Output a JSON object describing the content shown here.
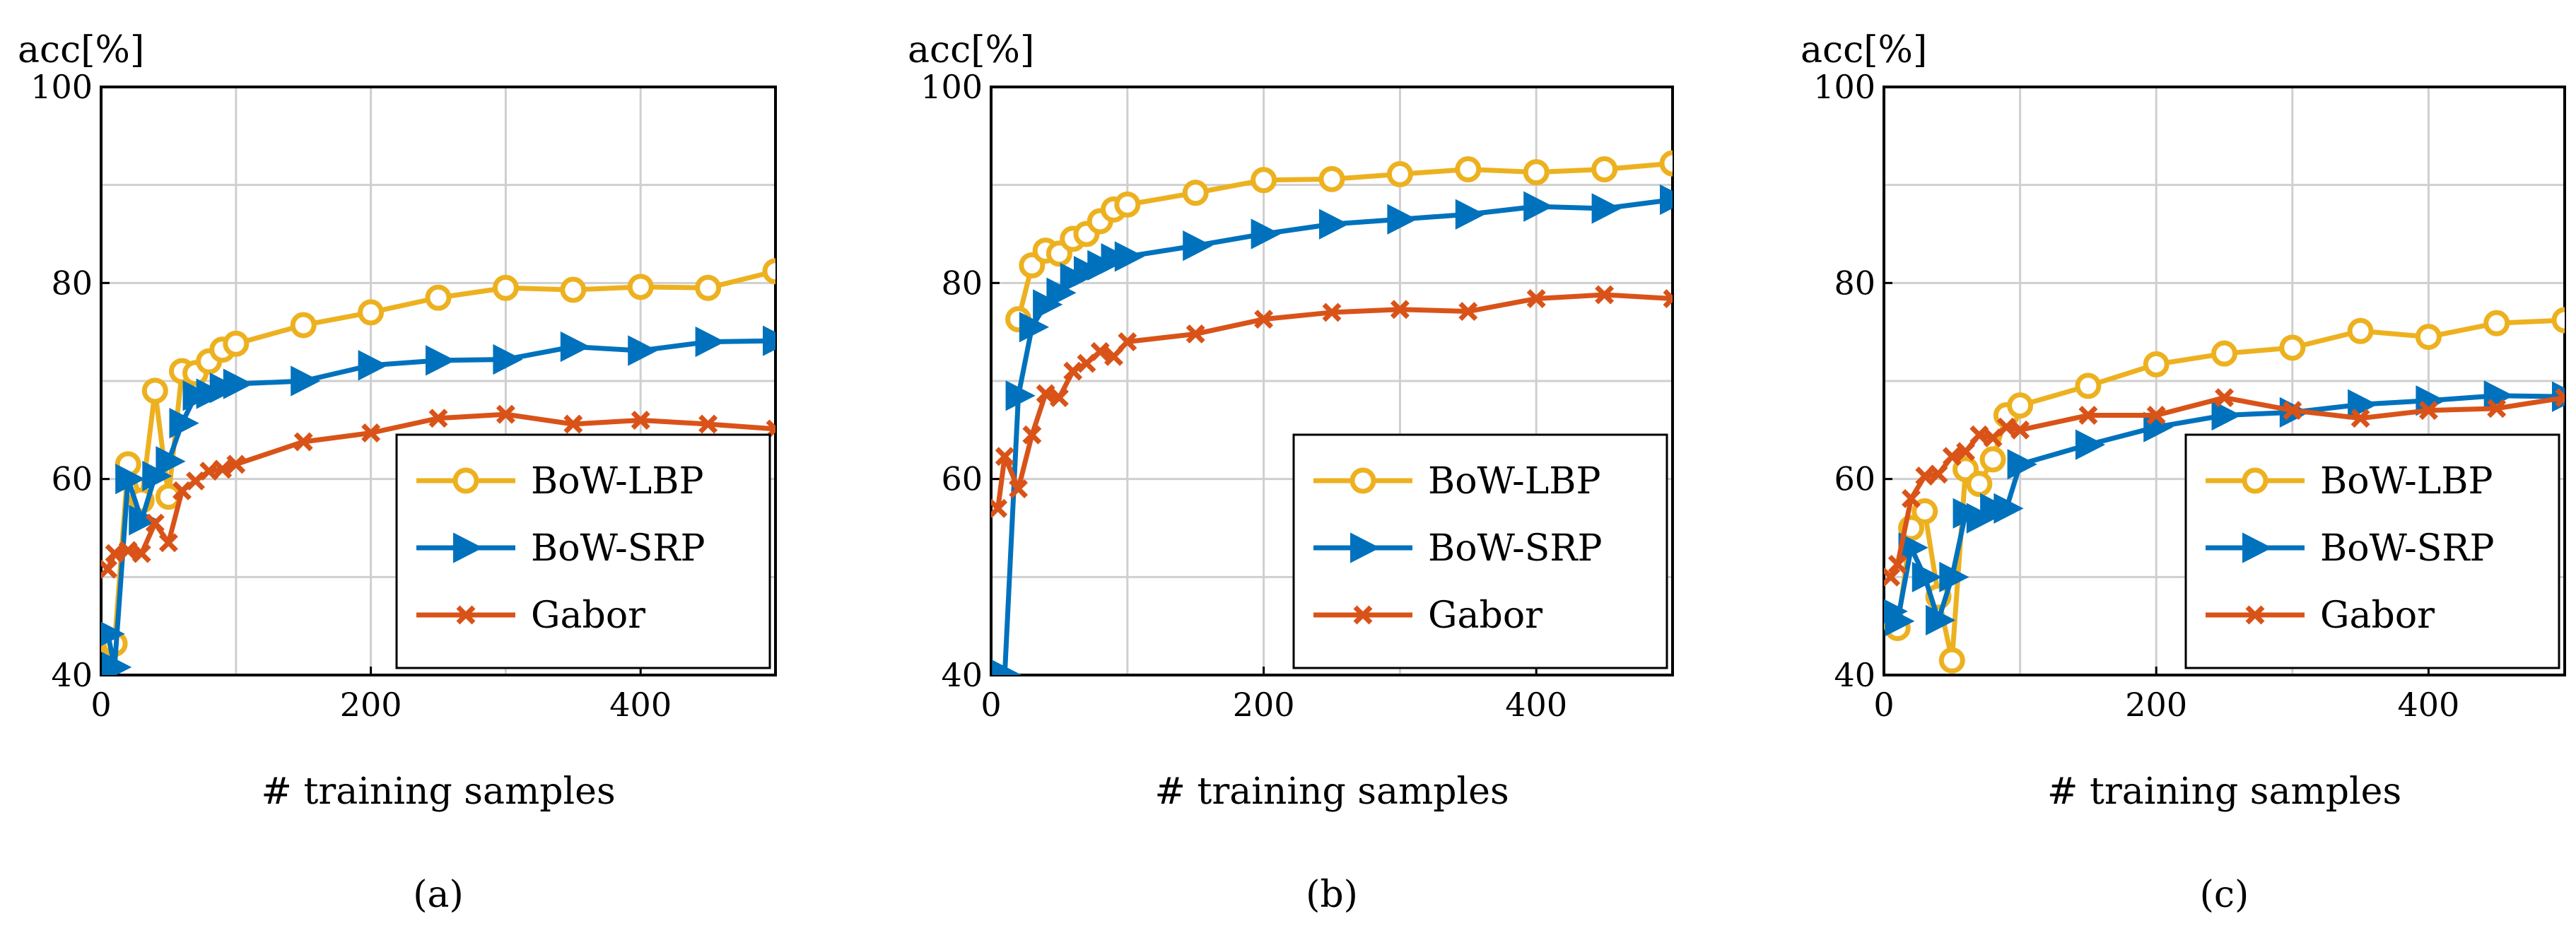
{
  "colors": {
    "BoW-LBP": "#edb120",
    "BoW-SRP": "#0072bd",
    "Gabor": "#d95319"
  },
  "chart_data": [
    {
      "type": "line",
      "caption": "(a)",
      "xlabel": "# training samples",
      "ylabel": "acc[%]",
      "xlim": [
        0,
        500
      ],
      "ylim": [
        40,
        100
      ],
      "xticks": [
        0,
        200,
        400
      ],
      "yticks": [
        40,
        60,
        80,
        100
      ],
      "grid": true,
      "legend_position": "bottom-right",
      "series": [
        {
          "name": "BoW-LBP",
          "marker": "circle",
          "x": [
            5,
            10,
            20,
            30,
            40,
            50,
            60,
            70,
            80,
            90,
            100,
            150,
            200,
            250,
            300,
            350,
            400,
            450,
            500
          ],
          "y": [
            43.5,
            43.2,
            61.5,
            57.8,
            69,
            58.2,
            71,
            70.8,
            72,
            73.2,
            73.8,
            75.7,
            77,
            78.5,
            79.5,
            79.3,
            79.6,
            79.5,
            81.2
          ]
        },
        {
          "name": "BoW-SRP",
          "marker": "triangle",
          "x": [
            5,
            10,
            20,
            30,
            40,
            50,
            60,
            70,
            80,
            90,
            100,
            150,
            200,
            250,
            300,
            350,
            400,
            450,
            500
          ],
          "y": [
            44.2,
            40.8,
            60,
            55.8,
            60.3,
            61.8,
            65.7,
            68.5,
            68.7,
            69.3,
            69.7,
            70,
            71.6,
            72.1,
            72.2,
            73.5,
            73.1,
            74,
            74.1
          ]
        },
        {
          "name": "Gabor",
          "marker": "x",
          "x": [
            5,
            10,
            20,
            30,
            40,
            50,
            60,
            70,
            80,
            90,
            100,
            150,
            200,
            250,
            300,
            350,
            400,
            450,
            500
          ],
          "y": [
            50.8,
            52.4,
            52.7,
            52.4,
            55.5,
            53.5,
            58.8,
            59.8,
            60.8,
            61,
            61.5,
            63.8,
            64.7,
            66.2,
            66.6,
            65.6,
            66,
            65.6,
            65.1
          ]
        }
      ]
    },
    {
      "type": "line",
      "caption": "(b)",
      "xlabel": "# training samples",
      "ylabel": "acc[%]",
      "xlim": [
        0,
        500
      ],
      "ylim": [
        40,
        100
      ],
      "xticks": [
        0,
        200,
        400
      ],
      "yticks": [
        40,
        60,
        80,
        100
      ],
      "grid": true,
      "legend_position": "bottom-right",
      "series": [
        {
          "name": "BoW-LBP",
          "marker": "circle",
          "x": [
            20,
            30,
            40,
            50,
            60,
            70,
            80,
            90,
            100,
            150,
            200,
            250,
            300,
            350,
            400,
            450,
            500
          ],
          "y": [
            76.3,
            81.8,
            83.3,
            83,
            84.5,
            85,
            86.3,
            87.5,
            88,
            89.2,
            90.5,
            90.6,
            91.1,
            91.6,
            91.3,
            91.6,
            92.2
          ]
        },
        {
          "name": "BoW-SRP",
          "marker": "triangle",
          "x": [
            10,
            20,
            30,
            40,
            50,
            60,
            70,
            80,
            90,
            100,
            150,
            200,
            250,
            300,
            350,
            400,
            450,
            500
          ],
          "y": [
            40,
            68.5,
            75.5,
            77.8,
            79,
            80.5,
            81.2,
            81.8,
            82.5,
            82.7,
            83.8,
            85,
            86,
            86.5,
            87,
            87.8,
            87.6,
            88.5
          ]
        },
        {
          "name": "Gabor",
          "marker": "x",
          "x": [
            5,
            10,
            20,
            30,
            40,
            50,
            60,
            70,
            80,
            90,
            100,
            150,
            200,
            250,
            300,
            350,
            400,
            450,
            500
          ],
          "y": [
            57,
            62.3,
            59,
            64.5,
            68.7,
            68.3,
            71,
            71.8,
            73,
            72.5,
            74,
            74.8,
            76.3,
            77,
            77.3,
            77.1,
            78.4,
            78.8,
            78.4
          ]
        }
      ]
    },
    {
      "type": "line",
      "caption": "(c)",
      "xlabel": "# training samples",
      "ylabel": "acc[%]",
      "xlim": [
        0,
        500
      ],
      "ylim": [
        40,
        100
      ],
      "xticks": [
        0,
        200,
        400
      ],
      "yticks": [
        40,
        60,
        80,
        100
      ],
      "grid": true,
      "legend_position": "bottom-right",
      "series": [
        {
          "name": "BoW-LBP",
          "marker": "circle",
          "x": [
            5,
            10,
            20,
            30,
            40,
            50,
            60,
            70,
            80,
            90,
            100,
            150,
            200,
            250,
            300,
            350,
            400,
            450,
            500
          ],
          "y": [
            45.8,
            44.8,
            55,
            56.7,
            48,
            41.5,
            61,
            59.5,
            62,
            66.5,
            67.5,
            69.5,
            71.7,
            72.8,
            73.4,
            75.1,
            74.5,
            75.9,
            76.2
          ]
        },
        {
          "name": "BoW-SRP",
          "marker": "triangle",
          "x": [
            5,
            10,
            20,
            30,
            40,
            50,
            60,
            70,
            80,
            90,
            100,
            150,
            200,
            250,
            300,
            350,
            400,
            450,
            500
          ],
          "y": [
            46.5,
            45.5,
            53,
            50,
            45.6,
            50,
            56.5,
            56,
            57,
            57,
            61.5,
            63.5,
            65.3,
            66.5,
            66.8,
            67.6,
            68,
            68.5,
            68.4
          ]
        },
        {
          "name": "Gabor",
          "marker": "x",
          "x": [
            5,
            10,
            20,
            30,
            40,
            50,
            60,
            70,
            80,
            90,
            100,
            150,
            200,
            250,
            300,
            350,
            400,
            450,
            500
          ],
          "y": [
            50,
            51.3,
            58,
            60.3,
            60.5,
            62.3,
            62.8,
            64.5,
            64.2,
            65.3,
            65,
            66.5,
            66.5,
            68.3,
            67,
            66.2,
            67,
            67.2,
            68.3
          ]
        }
      ]
    }
  ]
}
